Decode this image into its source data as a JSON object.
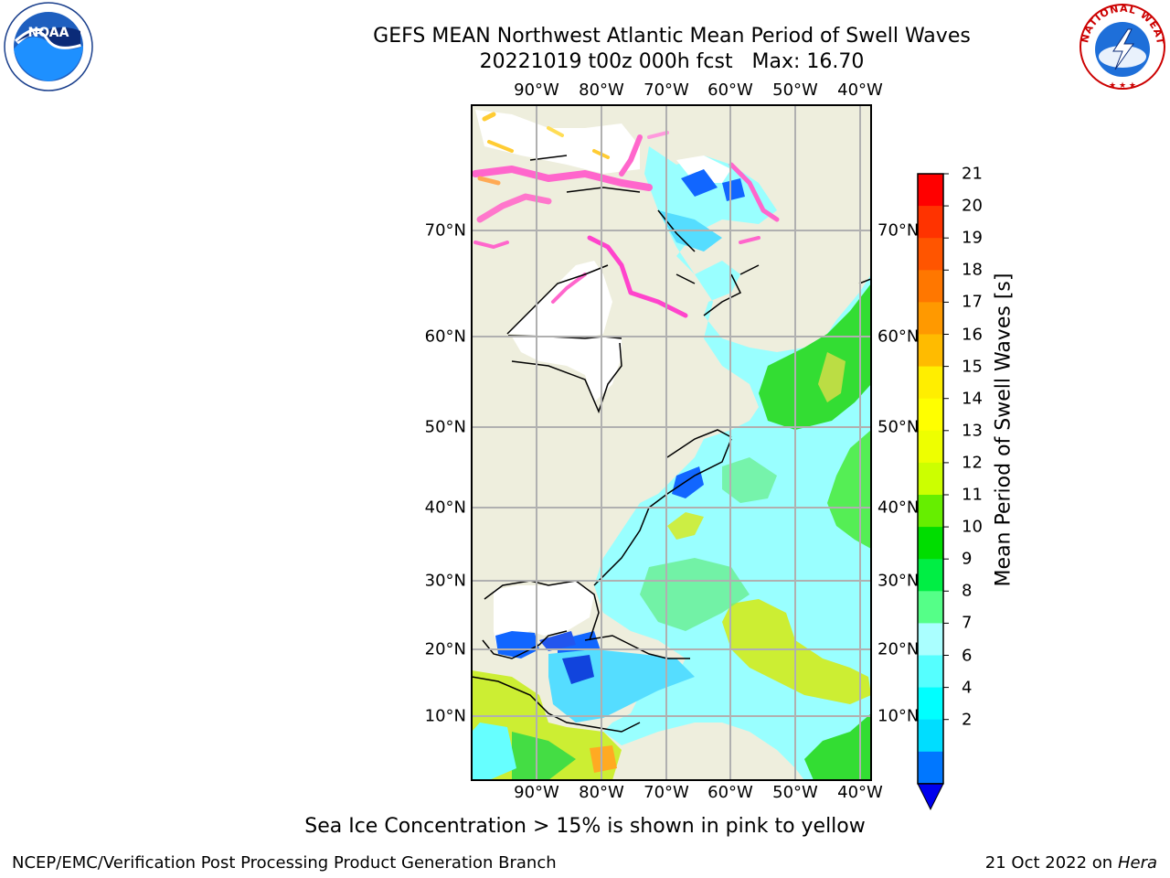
{
  "header": {
    "title_line1": "GEFS MEAN Northwest Atlantic Mean Period of Swell Waves",
    "title_line2": "20221019 t00z 000h fcst   Max: 16.70"
  },
  "map": {
    "lon_labels": [
      "90°W",
      "80°W",
      "70°W",
      "60°W",
      "50°W",
      "40°W"
    ],
    "lat_labels": [
      "70°N",
      "60°N",
      "50°N",
      "40°N",
      "30°N",
      "20°N",
      "10°N"
    ],
    "colors": {
      "land": "#eeeedd",
      "grid": "#b0b0b0",
      "ocean_cyan": "#99ffff",
      "ice_pink": "#ff66cc",
      "ice_yellow": "#ffcc33"
    }
  },
  "colorbar": {
    "label": "Mean Period of Swell Waves [s]",
    "ticks": [
      "21",
      "20",
      "19",
      "18",
      "17",
      "16",
      "15",
      "14",
      "13",
      "12",
      "11",
      "10",
      "9",
      "8",
      "7",
      "6",
      "4",
      "2"
    ],
    "colors": [
      "#ff0000",
      "#ff3300",
      "#ff5500",
      "#ff7700",
      "#ff9900",
      "#ffbb00",
      "#ffee00",
      "#ffff00",
      "#eeff00",
      "#ccff00",
      "#66ee00",
      "#00dd00",
      "#00ee44",
      "#55ff88",
      "#aaffff",
      "#55ffff",
      "#00ffff",
      "#00ddff",
      "#0077ff"
    ],
    "under_color": "#0000ee"
  },
  "footer": {
    "note": "Sea Ice Concentration > 15% is shown in pink to yellow",
    "left": "NCEP/EMC/Verification Post Processing Product Generation Branch",
    "right_date": "21 Oct 2022 on",
    "right_host": "Hera"
  },
  "logos": {
    "left_text": "NOAA",
    "right_text": "NATIONAL WEATHER SERVICE"
  }
}
